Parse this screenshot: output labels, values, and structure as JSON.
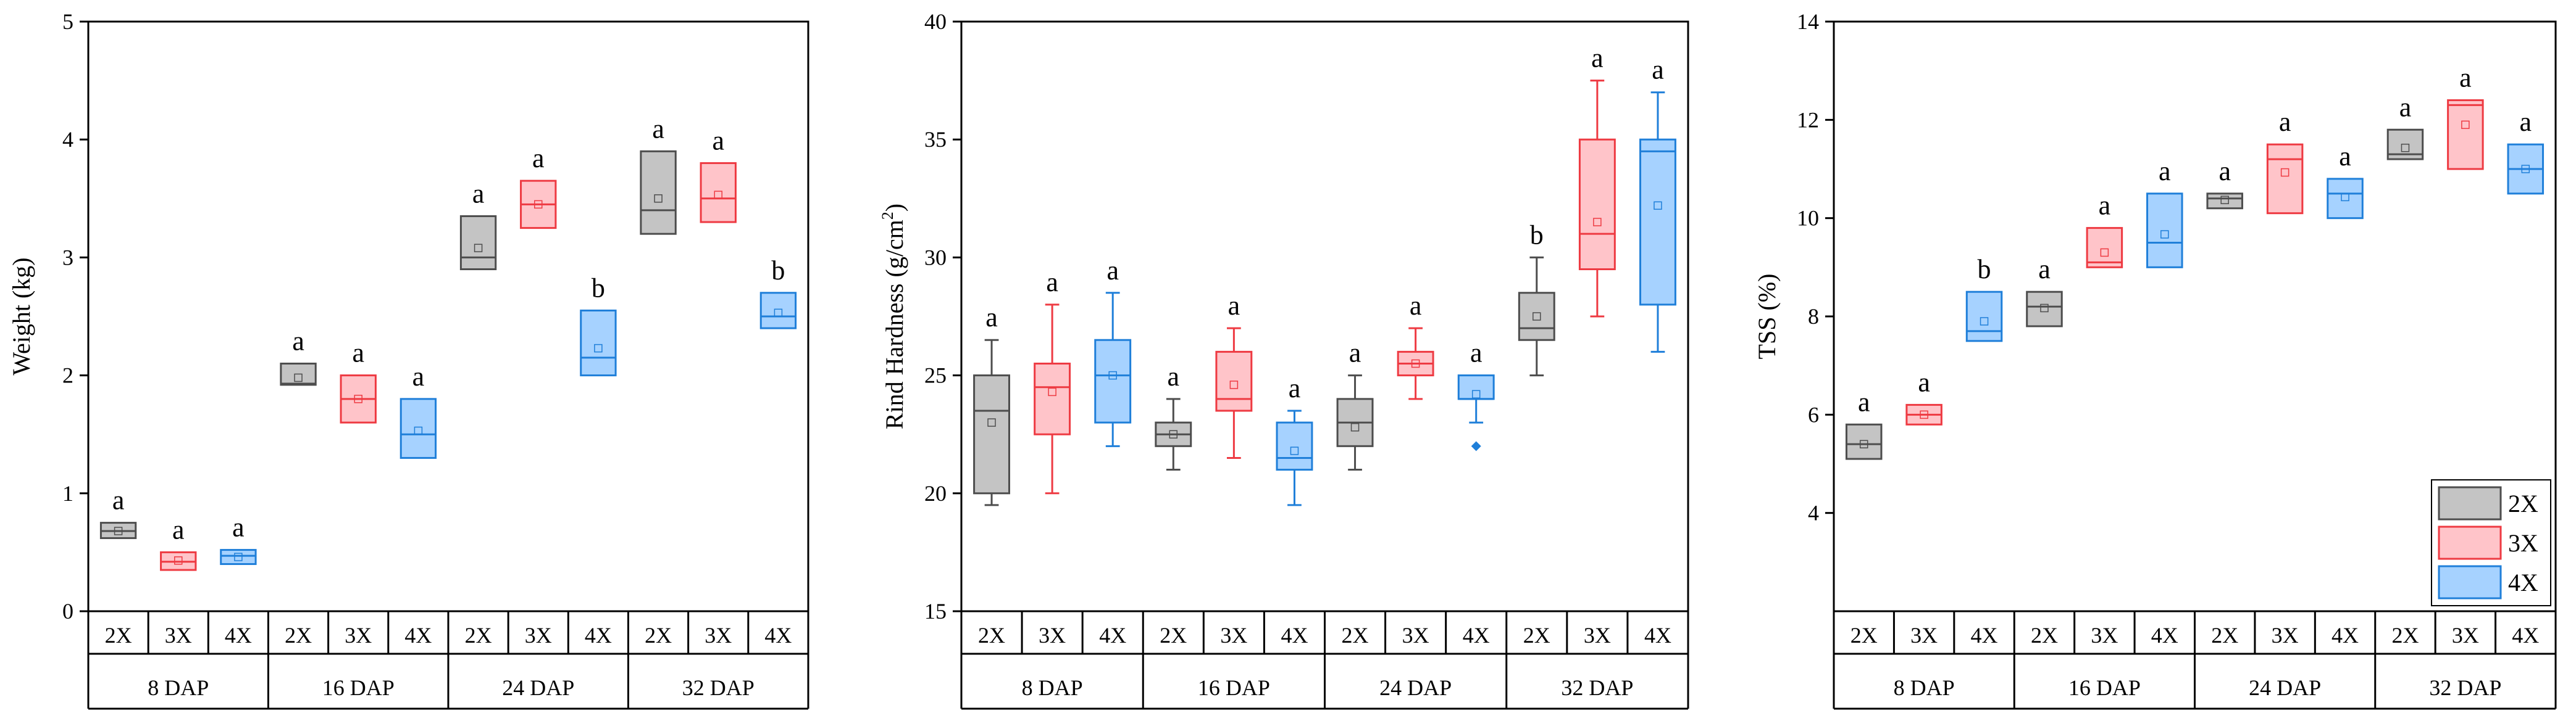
{
  "series_styles": {
    "2X": {
      "fill": "#c4c4c4",
      "stroke": "#4d4d4d"
    },
    "3X": {
      "fill": "#ffc4c9",
      "stroke": "#ee3a42"
    },
    "4X": {
      "fill": "#a6d2ff",
      "stroke": "#1f7fd9"
    }
  },
  "legend": {
    "items": [
      "2X",
      "3X",
      "4X"
    ]
  },
  "chart_data": [
    {
      "type": "box",
      "title": "",
      "ylabel": "Weight (kg)",
      "ylabel_super": "",
      "ylabel_tail": "",
      "ylim": [
        0,
        5
      ],
      "yticks": [
        0,
        1,
        2,
        3,
        4,
        5
      ],
      "groups": [
        "8 DAP",
        "16 DAP",
        "24 DAP",
        "32 DAP"
      ],
      "series_names": [
        "2X",
        "3X",
        "4X"
      ],
      "boxes": [
        {
          "group": "8 DAP",
          "series": "2X",
          "min": 0.62,
          "q1": 0.62,
          "median": 0.68,
          "q3": 0.75,
          "max": 0.75,
          "mean": 0.68,
          "letter": "a"
        },
        {
          "group": "8 DAP",
          "series": "3X",
          "min": 0.35,
          "q1": 0.35,
          "median": 0.42,
          "q3": 0.5,
          "max": 0.5,
          "mean": 0.43,
          "letter": "a"
        },
        {
          "group": "8 DAP",
          "series": "4X",
          "min": 0.4,
          "q1": 0.4,
          "median": 0.47,
          "q3": 0.52,
          "max": 0.52,
          "mean": 0.46,
          "letter": "a"
        },
        {
          "group": "16 DAP",
          "series": "2X",
          "min": 1.92,
          "q1": 1.92,
          "median": 1.93,
          "q3": 2.1,
          "max": 2.1,
          "mean": 1.98,
          "letter": "a"
        },
        {
          "group": "16 DAP",
          "series": "3X",
          "min": 1.6,
          "q1": 1.6,
          "median": 1.8,
          "q3": 2.0,
          "max": 2.0,
          "mean": 1.8,
          "letter": "a"
        },
        {
          "group": "16 DAP",
          "series": "4X",
          "min": 1.3,
          "q1": 1.3,
          "median": 1.5,
          "q3": 1.8,
          "max": 1.8,
          "mean": 1.53,
          "letter": "a"
        },
        {
          "group": "24 DAP",
          "series": "2X",
          "min": 2.9,
          "q1": 2.9,
          "median": 3.0,
          "q3": 3.35,
          "max": 3.35,
          "mean": 3.08,
          "letter": "a"
        },
        {
          "group": "24 DAP",
          "series": "3X",
          "min": 3.25,
          "q1": 3.25,
          "median": 3.45,
          "q3": 3.65,
          "max": 3.65,
          "mean": 3.45,
          "letter": "a"
        },
        {
          "group": "24 DAP",
          "series": "4X",
          "min": 2.0,
          "q1": 2.0,
          "median": 2.15,
          "q3": 2.55,
          "max": 2.55,
          "mean": 2.23,
          "letter": "b"
        },
        {
          "group": "32 DAP",
          "series": "2X",
          "min": 3.2,
          "q1": 3.2,
          "median": 3.4,
          "q3": 3.9,
          "max": 3.9,
          "mean": 3.5,
          "letter": "a"
        },
        {
          "group": "32 DAP",
          "series": "3X",
          "min": 3.3,
          "q1": 3.3,
          "median": 3.5,
          "q3": 3.8,
          "max": 3.8,
          "mean": 3.53,
          "letter": "a"
        },
        {
          "group": "32 DAP",
          "series": "4X",
          "min": 2.4,
          "q1": 2.4,
          "median": 2.5,
          "q3": 2.7,
          "max": 2.7,
          "mean": 2.53,
          "letter": "b"
        }
      ],
      "outliers": [],
      "legend": false
    },
    {
      "type": "box",
      "title": "",
      "ylabel": "Rind Hardness (g/cm",
      "ylabel_super": "2",
      "ylabel_tail": ")",
      "ylim": [
        15,
        40
      ],
      "yticks": [
        15,
        20,
        25,
        30,
        35,
        40
      ],
      "groups": [
        "8 DAP",
        "16 DAP",
        "24 DAP",
        "32 DAP"
      ],
      "series_names": [
        "2X",
        "3X",
        "4X"
      ],
      "boxes": [
        {
          "group": "8 DAP",
          "series": "2X",
          "min": 19.5,
          "q1": 20.0,
          "median": 23.5,
          "q3": 25.0,
          "max": 26.5,
          "mean": 23.0,
          "letter": "a"
        },
        {
          "group": "8 DAP",
          "series": "3X",
          "min": 20.0,
          "q1": 22.5,
          "median": 24.5,
          "q3": 25.5,
          "max": 28.0,
          "mean": 24.3,
          "letter": "a"
        },
        {
          "group": "8 DAP",
          "series": "4X",
          "min": 22.0,
          "q1": 23.0,
          "median": 25.0,
          "q3": 26.5,
          "max": 28.5,
          "mean": 25.0,
          "letter": "a"
        },
        {
          "group": "16 DAP",
          "series": "2X",
          "min": 21.0,
          "q1": 22.0,
          "median": 22.5,
          "q3": 23.0,
          "max": 24.0,
          "mean": 22.5,
          "letter": "a"
        },
        {
          "group": "16 DAP",
          "series": "3X",
          "min": 21.5,
          "q1": 23.5,
          "median": 24.0,
          "q3": 26.0,
          "max": 27.0,
          "mean": 24.6,
          "letter": "a"
        },
        {
          "group": "16 DAP",
          "series": "4X",
          "min": 19.5,
          "q1": 21.0,
          "median": 21.5,
          "q3": 23.0,
          "max": 23.5,
          "mean": 21.8,
          "letter": "a"
        },
        {
          "group": "24 DAP",
          "series": "2X",
          "min": 21.0,
          "q1": 22.0,
          "median": 23.0,
          "q3": 24.0,
          "max": 25.0,
          "mean": 22.8,
          "letter": "a"
        },
        {
          "group": "24 DAP",
          "series": "3X",
          "min": 24.0,
          "q1": 25.0,
          "median": 25.5,
          "q3": 26.0,
          "max": 27.0,
          "mean": 25.5,
          "letter": "a"
        },
        {
          "group": "24 DAP",
          "series": "4X",
          "min": 23.0,
          "q1": 24.0,
          "median": 24.0,
          "q3": 25.0,
          "max": 25.0,
          "mean": 24.2,
          "letter": "a"
        },
        {
          "group": "32 DAP",
          "series": "2X",
          "min": 25.0,
          "q1": 26.5,
          "median": 27.0,
          "q3": 28.5,
          "max": 30.0,
          "mean": 27.5,
          "letter": "b"
        },
        {
          "group": "32 DAP",
          "series": "3X",
          "min": 27.5,
          "q1": 29.5,
          "median": 31.0,
          "q3": 35.0,
          "max": 37.5,
          "mean": 31.5,
          "letter": "a"
        },
        {
          "group": "32 DAP",
          "series": "4X",
          "min": 26.0,
          "q1": 28.0,
          "median": 34.5,
          "q3": 35.0,
          "max": 37.0,
          "mean": 32.2,
          "letter": "a"
        }
      ],
      "outliers": [
        {
          "group": "24 DAP",
          "series": "4X",
          "value": 22.0
        }
      ],
      "legend": false
    },
    {
      "type": "box",
      "title": "",
      "ylabel": "TSS (%)",
      "ylabel_super": "",
      "ylabel_tail": "",
      "ylim": [
        2,
        14
      ],
      "yticks": [
        4,
        6,
        8,
        10,
        12,
        14
      ],
      "groups": [
        "8 DAP",
        "16 DAP",
        "24 DAP",
        "32 DAP"
      ],
      "series_names": [
        "2X",
        "3X",
        "4X"
      ],
      "boxes": [
        {
          "group": "8 DAP",
          "series": "2X",
          "min": 5.1,
          "q1": 5.1,
          "median": 5.4,
          "q3": 5.8,
          "max": 5.8,
          "mean": 5.4,
          "letter": "a"
        },
        {
          "group": "8 DAP",
          "series": "3X",
          "min": 5.8,
          "q1": 5.8,
          "median": 6.0,
          "q3": 6.2,
          "max": 6.2,
          "mean": 6.0,
          "letter": "a"
        },
        {
          "group": "8 DAP",
          "series": "4X",
          "min": 7.5,
          "q1": 7.5,
          "median": 7.7,
          "q3": 8.5,
          "max": 8.5,
          "mean": 7.9,
          "letter": "b"
        },
        {
          "group": "16 DAP",
          "series": "2X",
          "min": 7.8,
          "q1": 7.8,
          "median": 8.2,
          "q3": 8.5,
          "max": 8.5,
          "mean": 8.17,
          "letter": "a"
        },
        {
          "group": "16 DAP",
          "series": "3X",
          "min": 9.0,
          "q1": 9.0,
          "median": 9.1,
          "q3": 9.8,
          "max": 9.8,
          "mean": 9.3,
          "letter": "a"
        },
        {
          "group": "16 DAP",
          "series": "4X",
          "min": 9.0,
          "q1": 9.0,
          "median": 9.5,
          "q3": 10.5,
          "max": 10.5,
          "mean": 9.67,
          "letter": "a"
        },
        {
          "group": "24 DAP",
          "series": "2X",
          "min": 10.2,
          "q1": 10.2,
          "median": 10.4,
          "q3": 10.5,
          "max": 10.5,
          "mean": 10.37,
          "letter": "a"
        },
        {
          "group": "24 DAP",
          "series": "3X",
          "min": 10.1,
          "q1": 10.1,
          "median": 11.2,
          "q3": 11.5,
          "max": 11.5,
          "mean": 10.93,
          "letter": "a"
        },
        {
          "group": "24 DAP",
          "series": "4X",
          "min": 10.0,
          "q1": 10.0,
          "median": 10.5,
          "q3": 10.8,
          "max": 10.8,
          "mean": 10.43,
          "letter": "a"
        },
        {
          "group": "32 DAP",
          "series": "2X",
          "min": 11.2,
          "q1": 11.2,
          "median": 11.3,
          "q3": 11.8,
          "max": 11.8,
          "mean": 11.43,
          "letter": "a"
        },
        {
          "group": "32 DAP",
          "series": "3X",
          "min": 11.0,
          "q1": 11.0,
          "median": 12.3,
          "q3": 12.4,
          "max": 12.4,
          "mean": 11.9,
          "letter": "a"
        },
        {
          "group": "32 DAP",
          "series": "4X",
          "min": 10.5,
          "q1": 10.5,
          "median": 11.0,
          "q3": 11.5,
          "max": 11.5,
          "mean": 11.0,
          "letter": "a"
        }
      ],
      "outliers": [],
      "legend": true
    }
  ]
}
